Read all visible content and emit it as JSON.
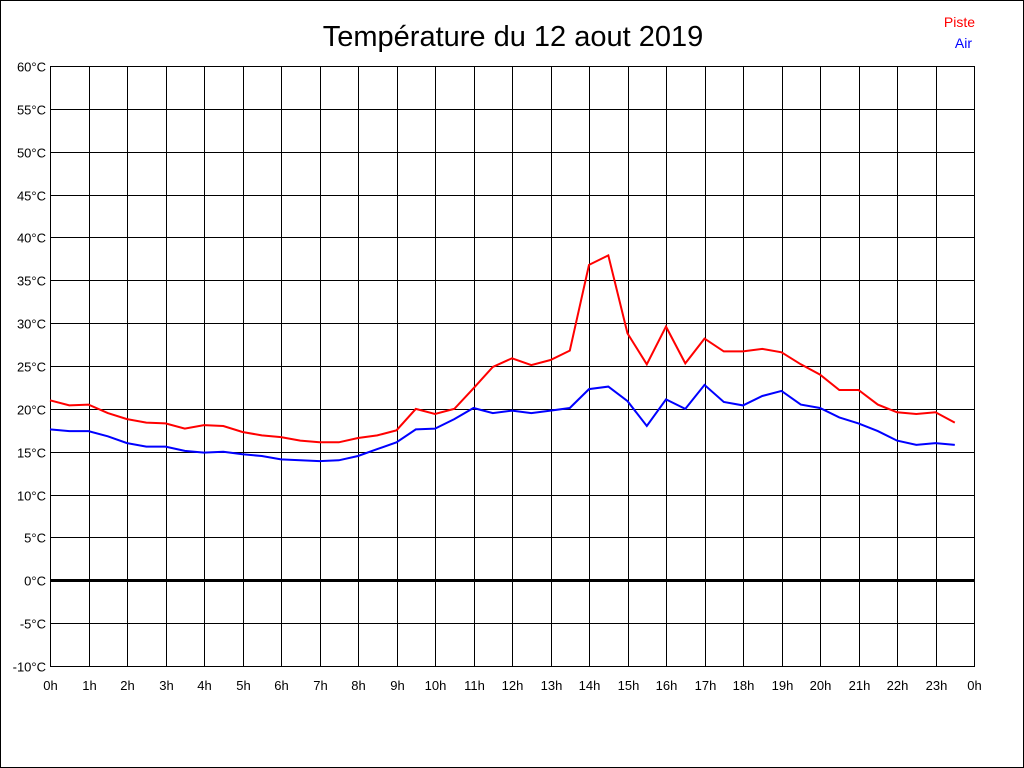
{
  "chart_data": {
    "type": "line",
    "title": "Température du 12 aout 2019",
    "xlabel": "",
    "ylabel": "",
    "x_tick_labels": [
      "0h",
      "1h",
      "2h",
      "3h",
      "4h",
      "5h",
      "6h",
      "7h",
      "8h",
      "9h",
      "10h",
      "11h",
      "12h",
      "13h",
      "14h",
      "15h",
      "16h",
      "17h",
      "18h",
      "19h",
      "20h",
      "21h",
      "22h",
      "23h",
      "0h"
    ],
    "y_tick_labels": [
      "60°C",
      "55°C",
      "50°C",
      "45°C",
      "40°C",
      "35°C",
      "30°C",
      "25°C",
      "20°C",
      "15°C",
      "10°C",
      "5°C",
      "0°C",
      "-5°C",
      "-10°C"
    ],
    "xlim": [
      0,
      24
    ],
    "ylim": [
      -10,
      60
    ],
    "grid": true,
    "legend_position": "top-right",
    "x": [
      0,
      0.5,
      1,
      1.5,
      2,
      2.5,
      3,
      3.5,
      4,
      4.5,
      5,
      5.5,
      6,
      6.5,
      7,
      7.5,
      8,
      8.5,
      9,
      9.5,
      10,
      10.5,
      11,
      11.5,
      12,
      12.5,
      13,
      13.5,
      14,
      14.5,
      15,
      15.5,
      16,
      16.5,
      17,
      17.5,
      18,
      18.5,
      19,
      19.5,
      20,
      20.5,
      21,
      21.5,
      22,
      22.5,
      23,
      23.5
    ],
    "series": [
      {
        "name": "Piste",
        "color": "#ff0000",
        "values": [
          21.0,
          20.4,
          20.5,
          19.5,
          18.8,
          18.4,
          18.3,
          17.7,
          18.1,
          18.0,
          17.3,
          16.9,
          16.7,
          16.3,
          16.1,
          16.1,
          16.6,
          16.9,
          17.5,
          20.0,
          19.4,
          20.0,
          22.4,
          24.9,
          25.9,
          25.1,
          25.7,
          26.8,
          36.8,
          37.9,
          28.8,
          25.2,
          29.6,
          25.3,
          28.2,
          26.7,
          26.7,
          27.0,
          26.6,
          25.2,
          24.0,
          22.2,
          22.2,
          20.5,
          19.6,
          19.4,
          19.6,
          18.4
        ]
      },
      {
        "name": "Air",
        "color": "#0000ff",
        "values": [
          17.6,
          17.4,
          17.4,
          16.8,
          16.0,
          15.6,
          15.6,
          15.1,
          14.9,
          15.0,
          14.7,
          14.5,
          14.1,
          14.0,
          13.9,
          14.0,
          14.5,
          15.3,
          16.1,
          17.6,
          17.7,
          18.8,
          20.1,
          19.5,
          19.8,
          19.5,
          19.8,
          20.1,
          22.3,
          22.6,
          20.9,
          18.0,
          21.1,
          20.0,
          22.8,
          20.8,
          20.4,
          21.5,
          22.1,
          20.5,
          20.1,
          19.0,
          18.3,
          17.4,
          16.3,
          15.8,
          16.0,
          15.8
        ]
      }
    ]
  }
}
